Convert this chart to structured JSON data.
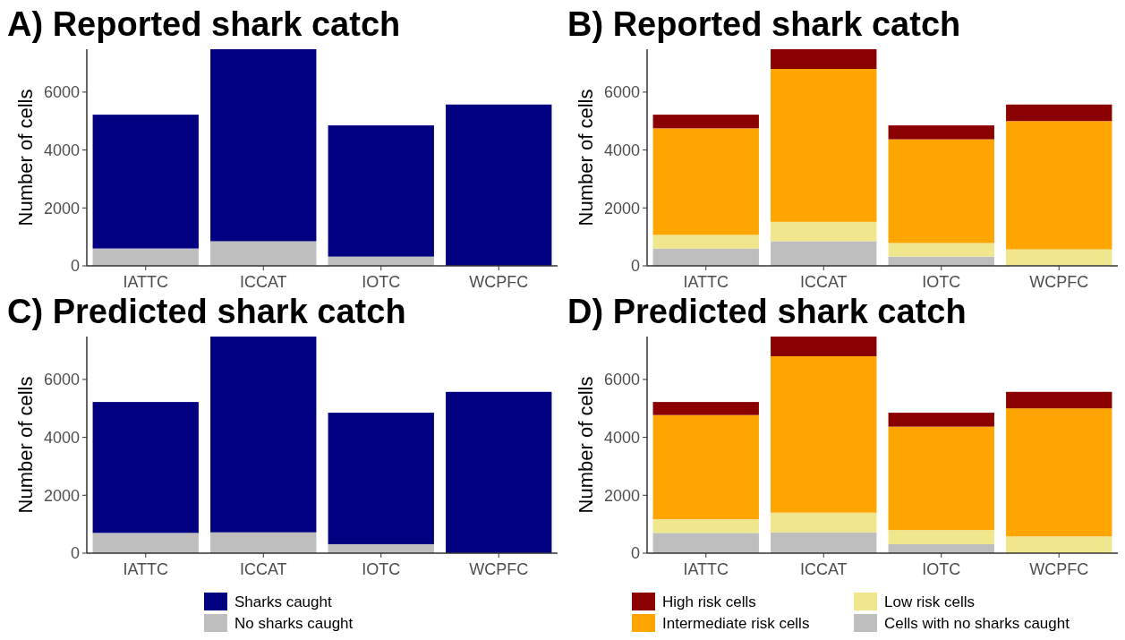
{
  "chart_data": [
    {
      "type": "bar",
      "title": "A) Reported shark catch",
      "ylabel": "Number of cells",
      "categories": [
        "IATTC",
        "ICCAT",
        "IOTC",
        "WCPFC"
      ],
      "stacked": true,
      "ylim": [
        0,
        7480
      ],
      "yticks": [
        0,
        2000,
        4000,
        6000
      ],
      "grid": false,
      "legend": false,
      "series": [
        {
          "color": "#bebebe",
          "values": [
            600,
            850,
            320,
            0
          ]
        },
        {
          "color": "#000080",
          "values": [
            4620,
            6630,
            4530,
            5570
          ]
        }
      ]
    },
    {
      "type": "bar",
      "title": "B) Reported shark catch",
      "ylabel": "Number of cells",
      "categories": [
        "IATTC",
        "ICCAT",
        "IOTC",
        "WCPFC"
      ],
      "stacked": true,
      "ylim": [
        0,
        7480
      ],
      "yticks": [
        0,
        2000,
        4000,
        6000
      ],
      "grid": false,
      "legend": false,
      "series": [
        {
          "color": "#bebebe",
          "values": [
            600,
            850,
            320,
            0
          ]
        },
        {
          "color": "#f0e68c",
          "values": [
            470,
            670,
            470,
            570
          ]
        },
        {
          "color": "#ffa500",
          "values": [
            3680,
            5280,
            3580,
            4430
          ]
        },
        {
          "color": "#8b0000",
          "values": [
            470,
            680,
            480,
            570
          ]
        }
      ]
    },
    {
      "type": "bar",
      "title": "C) Predicted shark catch",
      "ylabel": "Number of cells",
      "categories": [
        "IATTC",
        "ICCAT",
        "IOTC",
        "WCPFC"
      ],
      "stacked": true,
      "ylim": [
        0,
        7480
      ],
      "yticks": [
        0,
        2000,
        4000,
        6000
      ],
      "grid": false,
      "legend": "bottom",
      "series": [
        {
          "name": "No sharks caught",
          "color": "#bebebe",
          "values": [
            700,
            720,
            310,
            0
          ]
        },
        {
          "name": "Sharks caught",
          "color": "#000080",
          "values": [
            4520,
            6760,
            4540,
            5570
          ]
        }
      ]
    },
    {
      "type": "bar",
      "title": "D) Predicted shark catch",
      "ylabel": "Number of cells",
      "categories": [
        "IATTC",
        "ICCAT",
        "IOTC",
        "WCPFC"
      ],
      "stacked": true,
      "ylim": [
        0,
        7480
      ],
      "yticks": [
        0,
        2000,
        4000,
        6000
      ],
      "grid": false,
      "legend": "bottom",
      "series": [
        {
          "name": "Cells with no sharks caught",
          "color": "#bebebe",
          "values": [
            700,
            720,
            310,
            0
          ]
        },
        {
          "name": "Low risk cells",
          "color": "#f0e68c",
          "values": [
            470,
            680,
            490,
            580
          ]
        },
        {
          "name": "Intermediate risk cells",
          "color": "#ffa500",
          "values": [
            3600,
            5400,
            3570,
            4420
          ]
        },
        {
          "name": "High risk cells",
          "color": "#8b0000",
          "values": [
            450,
            680,
            480,
            570
          ]
        }
      ]
    }
  ]
}
